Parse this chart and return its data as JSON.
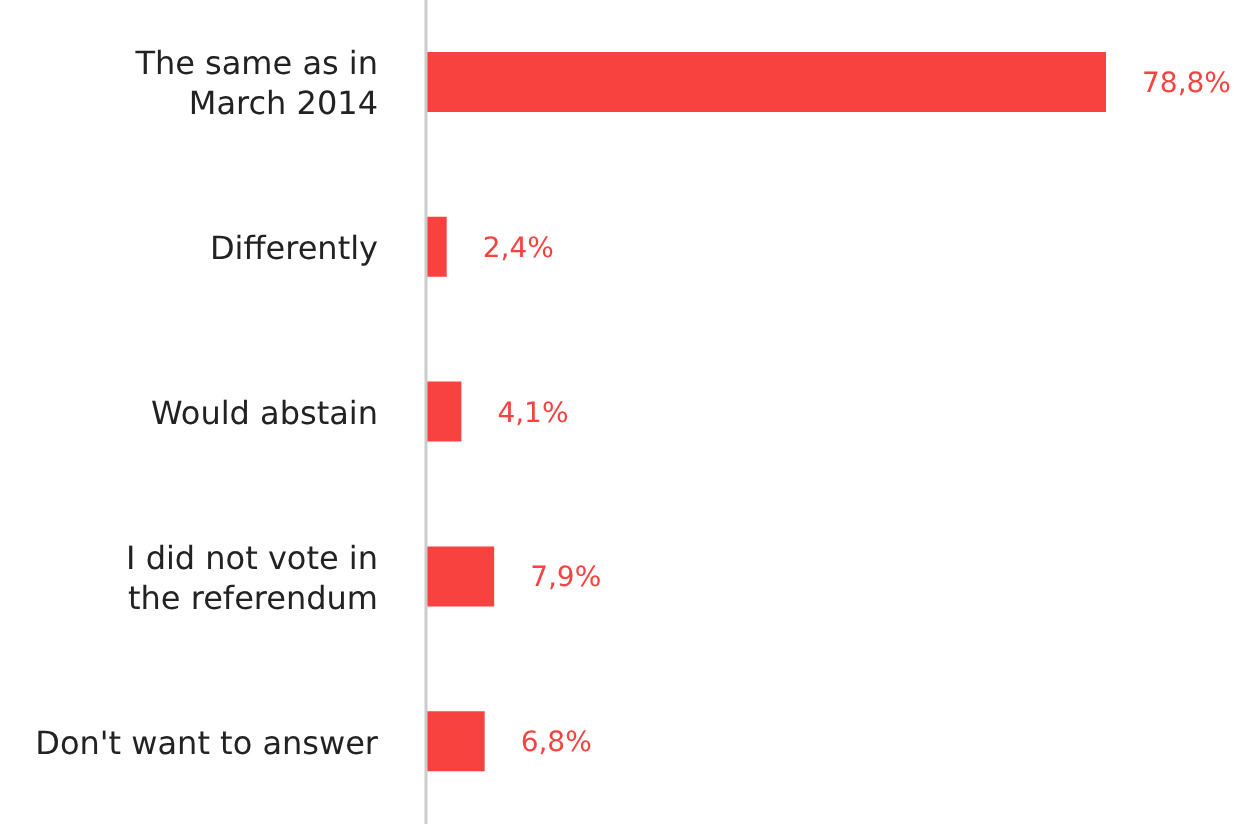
{
  "chart_data": {
    "type": "bar",
    "orientation": "horizontal",
    "categories": [
      "The same as in March 2014",
      "Differently",
      "Would abstain",
      "I did not vote in the referendum",
      "Don't want to answer"
    ],
    "values": [
      78.8,
      2.4,
      4.1,
      7.9,
      6.8
    ],
    "value_labels": [
      "78,8%",
      "2,4%",
      "4,1%",
      "7,9%",
      "6,8%"
    ],
    "color": "#f8423f",
    "grid": false,
    "legend": false
  }
}
